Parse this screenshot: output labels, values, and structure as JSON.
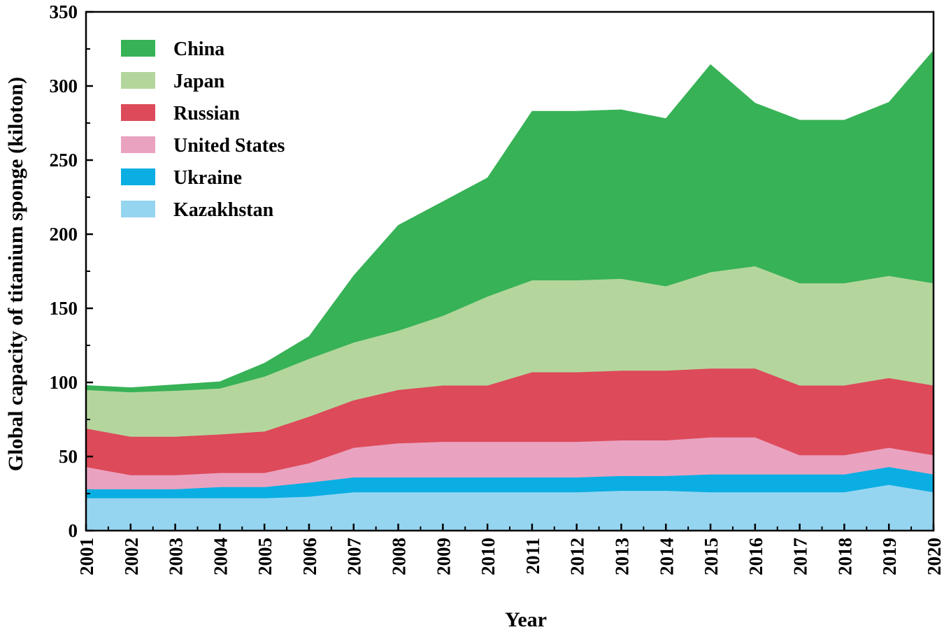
{
  "chart_data": {
    "type": "area",
    "stacked": true,
    "title": "",
    "xlabel": "Year",
    "ylabel": "Global capacity of titanium sponge (kiloton)",
    "ylim": [
      0,
      350
    ],
    "yticks": [
      0,
      50,
      100,
      150,
      200,
      250,
      300,
      350
    ],
    "categories": [
      "2001",
      "2002",
      "2003",
      "2004",
      "2005",
      "2006",
      "2007",
      "2008",
      "2009",
      "2010",
      "2011",
      "2012",
      "2013",
      "2014",
      "2015",
      "2016",
      "2017",
      "2018",
      "2019",
      "2020"
    ],
    "series": [
      {
        "name": "Kazakhstan",
        "color": "#96d5f0",
        "values": [
          22,
          22,
          22,
          22,
          22,
          23,
          26,
          26,
          26,
          26,
          26,
          26,
          27,
          27,
          26,
          26,
          26,
          26,
          31,
          26
        ]
      },
      {
        "name": "Ukraine",
        "color": "#0aaee3",
        "values": [
          6,
          6,
          6,
          7.5,
          7.5,
          9.5,
          10,
          10,
          10,
          10,
          10,
          10,
          10,
          10,
          12,
          12,
          12,
          12,
          12,
          12
        ]
      },
      {
        "name": "United States",
        "color": "#e9a3c0",
        "values": [
          15,
          9.5,
          9.5,
          9.5,
          9.5,
          13,
          20,
          23,
          24,
          24,
          24,
          24,
          24,
          24,
          25,
          25,
          13,
          13,
          13,
          13
        ]
      },
      {
        "name": "Russian",
        "color": "#dd4a5a",
        "values": [
          26,
          26,
          26,
          26,
          28,
          31.5,
          32,
          36,
          38,
          38,
          47,
          47,
          47,
          47,
          46.5,
          46.5,
          47,
          47,
          47,
          47
        ]
      },
      {
        "name": "Japan",
        "color": "#b4d69d",
        "values": [
          26,
          30,
          31,
          31,
          37,
          39,
          39,
          40,
          47,
          60,
          62,
          62,
          62,
          57,
          65,
          69,
          69,
          69,
          69,
          69
        ]
      },
      {
        "name": "China",
        "color": "#37b256",
        "values": [
          3,
          3,
          4,
          4.5,
          9,
          15,
          45,
          71,
          77,
          80,
          114,
          114,
          114,
          113,
          140,
          110,
          110,
          110,
          117,
          157
        ]
      }
    ],
    "legend_position": "top-left",
    "legend_order": [
      "China",
      "Japan",
      "Russian",
      "United States",
      "Ukraine",
      "Kazakhstan"
    ]
  }
}
